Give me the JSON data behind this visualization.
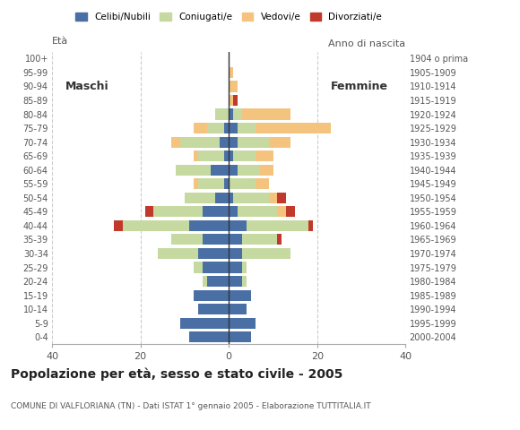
{
  "age_groups": [
    "0-4",
    "5-9",
    "10-14",
    "15-19",
    "20-24",
    "25-29",
    "30-34",
    "35-39",
    "40-44",
    "45-49",
    "50-54",
    "55-59",
    "60-64",
    "65-69",
    "70-74",
    "75-79",
    "80-84",
    "85-89",
    "90-94",
    "95-99",
    "100+"
  ],
  "birth_years": [
    "2000-2004",
    "1995-1999",
    "1990-1994",
    "1985-1989",
    "1980-1984",
    "1975-1979",
    "1970-1974",
    "1965-1969",
    "1960-1964",
    "1955-1959",
    "1950-1954",
    "1945-1949",
    "1940-1944",
    "1935-1939",
    "1930-1934",
    "1925-1929",
    "1920-1924",
    "1915-1919",
    "1910-1914",
    "1905-1909",
    "1904 o prima"
  ],
  "males": {
    "celibi": [
      9,
      11,
      7,
      8,
      5,
      6,
      7,
      6,
      9,
      6,
      3,
      1,
      4,
      1,
      2,
      1,
      0,
      0,
      0,
      0,
      0
    ],
    "coniugati": [
      0,
      0,
      0,
      0,
      1,
      2,
      9,
      7,
      15,
      11,
      7,
      6,
      8,
      6,
      9,
      4,
      3,
      0,
      0,
      0,
      0
    ],
    "vedovi": [
      0,
      0,
      0,
      0,
      0,
      0,
      0,
      0,
      0,
      0,
      0,
      1,
      0,
      1,
      2,
      3,
      0,
      0,
      0,
      0,
      0
    ],
    "divorziati": [
      0,
      0,
      0,
      0,
      0,
      0,
      0,
      0,
      2,
      2,
      0,
      0,
      0,
      0,
      0,
      0,
      0,
      0,
      0,
      0,
      0
    ]
  },
  "females": {
    "nubili": [
      5,
      6,
      4,
      5,
      3,
      3,
      3,
      3,
      4,
      2,
      1,
      0,
      2,
      1,
      2,
      2,
      1,
      0,
      0,
      0,
      0
    ],
    "coniugate": [
      0,
      0,
      0,
      0,
      1,
      1,
      11,
      8,
      14,
      9,
      8,
      6,
      5,
      5,
      7,
      4,
      2,
      0,
      0,
      0,
      0
    ],
    "vedove": [
      0,
      0,
      0,
      0,
      0,
      0,
      0,
      0,
      0,
      2,
      2,
      3,
      3,
      4,
      5,
      17,
      11,
      1,
      2,
      1,
      0
    ],
    "divorziate": [
      0,
      0,
      0,
      0,
      0,
      0,
      0,
      1,
      1,
      2,
      2,
      0,
      0,
      0,
      0,
      0,
      0,
      1,
      0,
      0,
      0
    ]
  },
  "colors": {
    "celibi": "#4a6fa5",
    "coniugati": "#c5d9a0",
    "vedovi": "#f4c47e",
    "divorziati": "#c0392b"
  },
  "xlim": 40,
  "title": "Popolazione per età, sesso e stato civile - 2005",
  "subtitle": "COMUNE DI VALFLORIANA (TN) - Dati ISTAT 1° gennaio 2005 - Elaborazione TUTTITALIA.IT",
  "ylabel_left": "Età",
  "ylabel_right": "Anno di nascita",
  "label_maschi": "Maschi",
  "label_femmine": "Femmine",
  "legend_labels": [
    "Celibi/Nubili",
    "Coniugati/e",
    "Vedovi/e",
    "Divorziati/e"
  ],
  "bg_color": "#ffffff",
  "grid_color": "#cccccc"
}
